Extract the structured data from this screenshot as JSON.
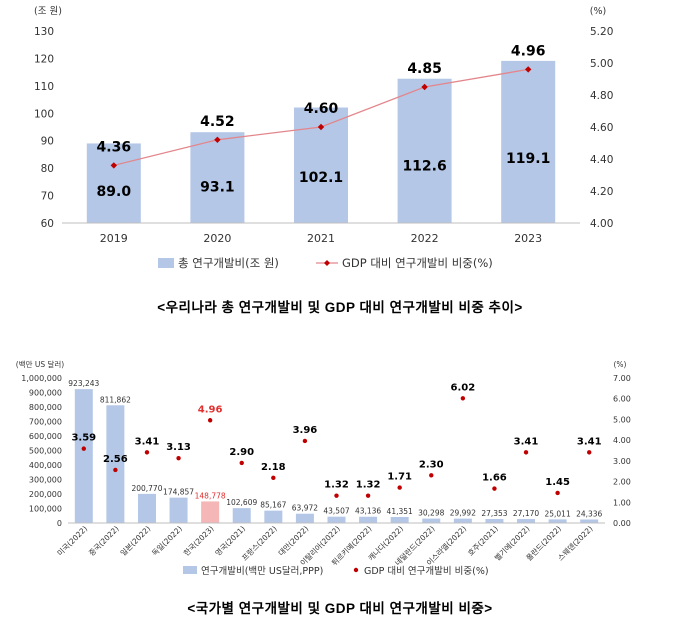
{
  "colors": {
    "bar": "#b4c7e7",
    "bar_highlight": "#f4b6b6",
    "line": "#e3868c",
    "marker": "#c00000",
    "axis_text": "#333333",
    "label_text": "#000000",
    "highlight_text": "#e03030"
  },
  "chart_data": [
    {
      "type": "bar",
      "categories": [
        "2019",
        "2020",
        "2021",
        "2022",
        "2023"
      ],
      "series": [
        {
          "name": "총 연구개발비(조 원)",
          "axis": "left",
          "values": [
            89.0,
            93.1,
            102.1,
            112.6,
            119.1
          ],
          "labels": [
            "89.0",
            "93.1",
            "102.1",
            "112.6",
            "119.1"
          ]
        },
        {
          "name": "GDP 대비 연구개발비 비중(%)",
          "axis": "right",
          "type": "line",
          "values": [
            4.36,
            4.52,
            4.6,
            4.85,
            4.96
          ],
          "labels": [
            "4.36",
            "4.52",
            "4.60",
            "4.85",
            "4.96"
          ]
        }
      ],
      "left_axis": {
        "unit": "(조 원)",
        "range": [
          60,
          130
        ],
        "ticks": [
          "60",
          "70",
          "80",
          "90",
          "100",
          "110",
          "120",
          "130"
        ]
      },
      "right_axis": {
        "unit": "(%)",
        "range": [
          4.0,
          5.2
        ],
        "ticks": [
          "4.00",
          "4.20",
          "4.40",
          "4.60",
          "4.80",
          "5.00",
          "5.20"
        ]
      },
      "legend": {
        "bar": "총 연구개발비(조 원)",
        "line": "GDP 대비 연구개발비 비중(%)",
        "placement": "bottom"
      },
      "caption": "<우리나라 총 연구개발비 및 GDP 대비 연구개발비 비중 추이>"
    },
    {
      "type": "bar",
      "categories": [
        "미국(2022)",
        "중국(2022)",
        "일본(2022)",
        "독일(2022)",
        "한국(2023)",
        "영국(2021)",
        "프랑스(2022)",
        "대만(2022)",
        "이탈리아(2022)",
        "튀르키예(2022)",
        "캐나다(2022)",
        "네덜란드(2022)",
        "이스라엘(2022)",
        "호주(2021)",
        "벨기에(2022)",
        "폴란드(2022)",
        "스웨덴(2022)"
      ],
      "highlight_index": 4,
      "series": [
        {
          "name": "연구개발비(백만 US달러,PPP)",
          "axis": "left",
          "values": [
            923243,
            811862,
            200770,
            174857,
            148778,
            102609,
            85167,
            63972,
            43507,
            43136,
            41351,
            30298,
            29992,
            27353,
            27170,
            25011,
            24336
          ],
          "labels": [
            "923,243",
            "811,862",
            "200,770",
            "174,857",
            "148,778",
            "102,609",
            "85,167",
            "63,972",
            "43,507",
            "43,136",
            "41,351",
            "30,298",
            "29,992",
            "27,353",
            "27,170",
            "25,011",
            "24,336"
          ]
        },
        {
          "name": "GDP 대비 연구개발비 비중(%)",
          "axis": "right",
          "type": "scatter",
          "values": [
            3.59,
            2.56,
            3.41,
            3.13,
            4.96,
            2.9,
            2.18,
            3.96,
            1.32,
            1.32,
            1.71,
            2.3,
            6.02,
            1.66,
            3.41,
            1.45,
            3.41
          ],
          "labels": [
            "3.59",
            "2.56",
            "3.41",
            "3.13",
            "4.96",
            "2.90",
            "2.18",
            "3.96",
            "1.32",
            "1.32",
            "1.71",
            "2.30",
            "6.02",
            "1.66",
            "3.41",
            "1.45",
            "3.41"
          ]
        }
      ],
      "left_axis": {
        "unit": "(백만 US 달러)",
        "range": [
          0,
          1000000
        ],
        "ticks": [
          "0",
          "100,000",
          "200,000",
          "300,000",
          "400,000",
          "500,000",
          "600,000",
          "700,000",
          "800,000",
          "900,000",
          "1,000,000"
        ]
      },
      "right_axis": {
        "unit": "(%)",
        "range": [
          0,
          7
        ],
        "ticks": [
          "0.00",
          "1.00",
          "2.00",
          "3.00",
          "4.00",
          "5.00",
          "6.00",
          "7.00"
        ]
      },
      "legend": {
        "bar": "연구개발비(백만 US달러,PPP)",
        "dot": "GDP 대비 연구개발비 비중(%)",
        "placement": "bottom"
      },
      "caption": "<국가별 연구개발비 및 GDP 대비 연구개발비 비중>"
    }
  ]
}
